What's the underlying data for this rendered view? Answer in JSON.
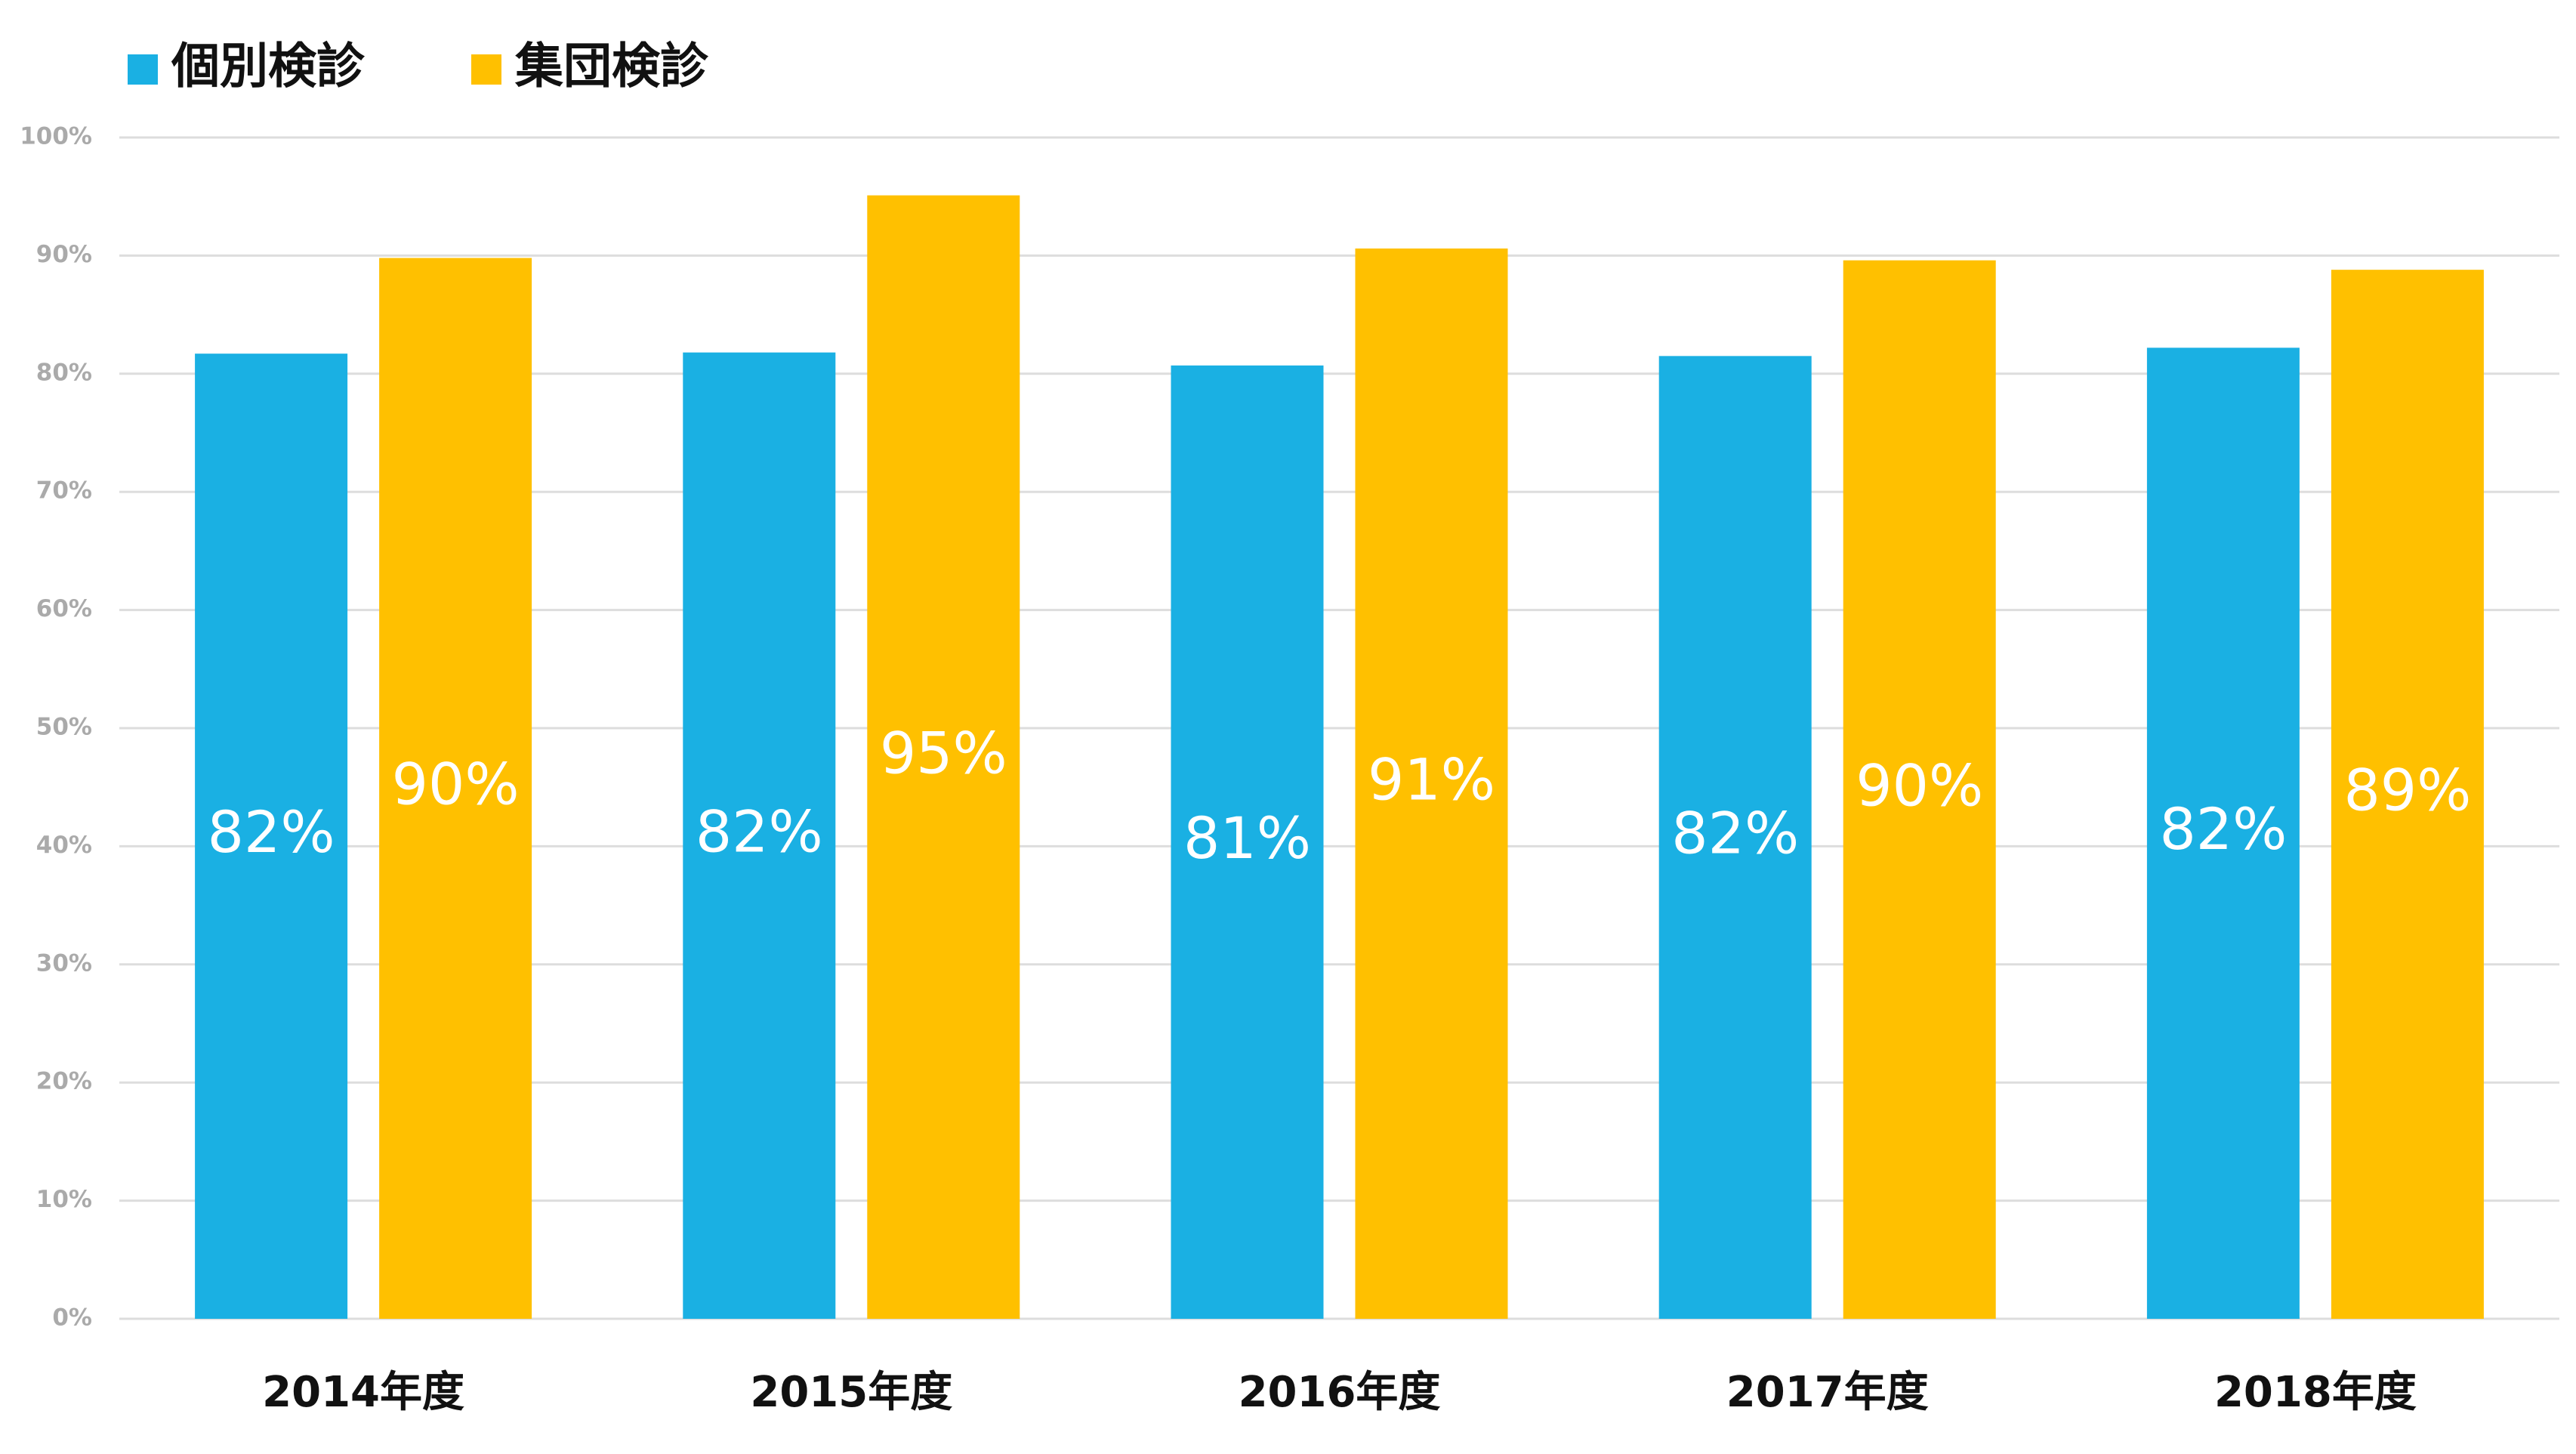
{
  "chart_data": {
    "type": "bar",
    "categories": [
      "2014年度",
      "2015年度",
      "2016年度",
      "2017年度",
      "2018年度"
    ],
    "series": [
      {
        "name": "個別検診",
        "color": "#1AB0E3",
        "values": [
          81.7,
          81.8,
          80.7,
          81.5,
          82.2
        ],
        "value_labels": [
          "82%",
          "82%",
          "81%",
          "82%",
          "82%"
        ]
      },
      {
        "name": "集団検診",
        "color": "#FFC000",
        "values": [
          89.8,
          95.1,
          90.6,
          89.6,
          88.8
        ],
        "value_labels": [
          "90%",
          "95%",
          "91%",
          "90%",
          "89%"
        ]
      }
    ],
    "ylim": [
      0,
      100
    ],
    "yticks": [
      {
        "value": 0,
        "label": "0%"
      },
      {
        "value": 10,
        "label": "10%"
      },
      {
        "value": 20,
        "label": "20%"
      },
      {
        "value": 30,
        "label": "30%"
      },
      {
        "value": 40,
        "label": "40%"
      },
      {
        "value": 50,
        "label": "50%"
      },
      {
        "value": 60,
        "label": "60%"
      },
      {
        "value": 70,
        "label": "70%"
      },
      {
        "value": 80,
        "label": "80%"
      },
      {
        "value": 90,
        "label": "90%"
      },
      {
        "value": 100,
        "label": "100%"
      }
    ],
    "grid": true,
    "legend": "top-left"
  }
}
